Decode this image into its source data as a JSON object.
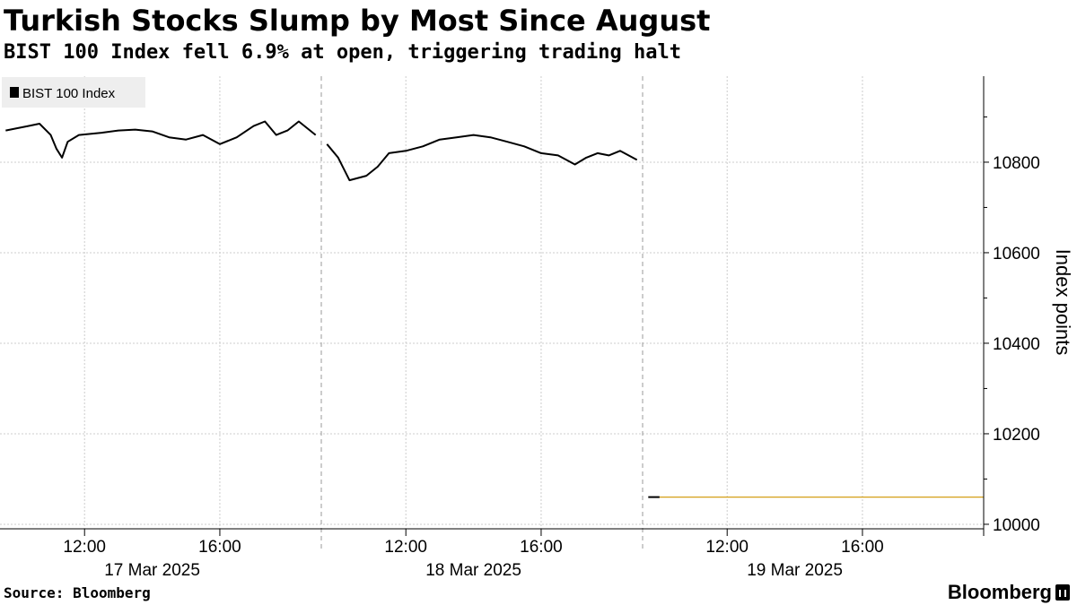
{
  "title": "Turkish Stocks Slump by Most Since August",
  "subtitle": "BIST 100 Index fell 6.9% at open, triggering trading halt",
  "source": "Source: Bloomberg",
  "brand": "Bloomberg",
  "chart_data": {
    "type": "line",
    "ylabel": "Index points",
    "ylim": [
      9990,
      10990
    ],
    "y_ticks": [
      10000,
      10200,
      10400,
      10600,
      10800
    ],
    "y_axis_side": "right",
    "grid": true,
    "legend": {
      "position": "top-left",
      "entries": [
        "BIST 100 Index"
      ]
    },
    "x_ticks": [
      "12:00",
      "16:00",
      "12:00",
      "16:00",
      "12:00",
      "16:00"
    ],
    "date_labels": [
      "17 Mar 2025",
      "18 Mar 2025",
      "19 Mar 2025"
    ],
    "colors": {
      "series": "#000000",
      "baseline": "#d4a017",
      "grid": "#cccccc"
    },
    "series": [
      {
        "name": "BIST 100 Index",
        "segments": [
          {
            "date": "17 Mar 2025",
            "points": [
              [
                "09:40",
                10870
              ],
              [
                "10:00",
                10875
              ],
              [
                "10:20",
                10880
              ],
              [
                "10:40",
                10885
              ],
              [
                "11:00",
                10860
              ],
              [
                "11:10",
                10830
              ],
              [
                "11:20",
                10810
              ],
              [
                "11:30",
                10845
              ],
              [
                "11:50",
                10860
              ],
              [
                "12:30",
                10865
              ],
              [
                "13:00",
                10870
              ],
              [
                "13:30",
                10872
              ],
              [
                "14:00",
                10868
              ],
              [
                "14:30",
                10855
              ],
              [
                "15:00",
                10850
              ],
              [
                "15:30",
                10860
              ],
              [
                "16:00",
                10840
              ],
              [
                "16:30",
                10855
              ],
              [
                "17:00",
                10880
              ],
              [
                "17:20",
                10890
              ],
              [
                "17:40",
                10860
              ],
              [
                "18:00",
                10870
              ],
              [
                "18:20",
                10890
              ],
              [
                "18:50",
                10860
              ]
            ]
          },
          {
            "date": "18 Mar 2025",
            "points": [
              [
                "09:40",
                10840
              ],
              [
                "10:00",
                10810
              ],
              [
                "10:20",
                10760
              ],
              [
                "10:50",
                10770
              ],
              [
                "11:10",
                10790
              ],
              [
                "11:30",
                10820
              ],
              [
                "12:00",
                10825
              ],
              [
                "12:30",
                10835
              ],
              [
                "13:00",
                10850
              ],
              [
                "13:30",
                10855
              ],
              [
                "14:00",
                10860
              ],
              [
                "14:30",
                10855
              ],
              [
                "15:00",
                10845
              ],
              [
                "15:30",
                10835
              ],
              [
                "16:00",
                10820
              ],
              [
                "16:30",
                10815
              ],
              [
                "17:00",
                10795
              ],
              [
                "17:20",
                10810
              ],
              [
                "17:40",
                10820
              ],
              [
                "18:00",
                10815
              ],
              [
                "18:20",
                10825
              ],
              [
                "18:50",
                10805
              ]
            ]
          },
          {
            "date": "19 Mar 2025",
            "points": [
              [
                "09:40",
                10060
              ],
              [
                "10:00",
                10060
              ]
            ]
          }
        ]
      }
    ],
    "baseline_value": 10060
  }
}
